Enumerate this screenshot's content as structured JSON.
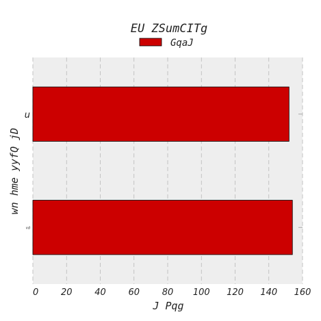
{
  "chart_data": {
    "type": "bar",
    "orientation": "horizontal",
    "title": "EU  ZSumCITg",
    "xlabel": "J Pqg",
    "ylabel": "wn hme yyfQ jD",
    "categories": [
      "u",
      "vd"
    ],
    "series": [
      {
        "name": "GqaJ",
        "values": [
          152,
          154
        ],
        "color": "#cc0000"
      }
    ],
    "xlim": [
      0,
      160
    ],
    "xticks": [
      0,
      20,
      40,
      60,
      80,
      100,
      120,
      140,
      160
    ],
    "grid": true,
    "legend": "top-center",
    "background": "#eeeeee"
  }
}
